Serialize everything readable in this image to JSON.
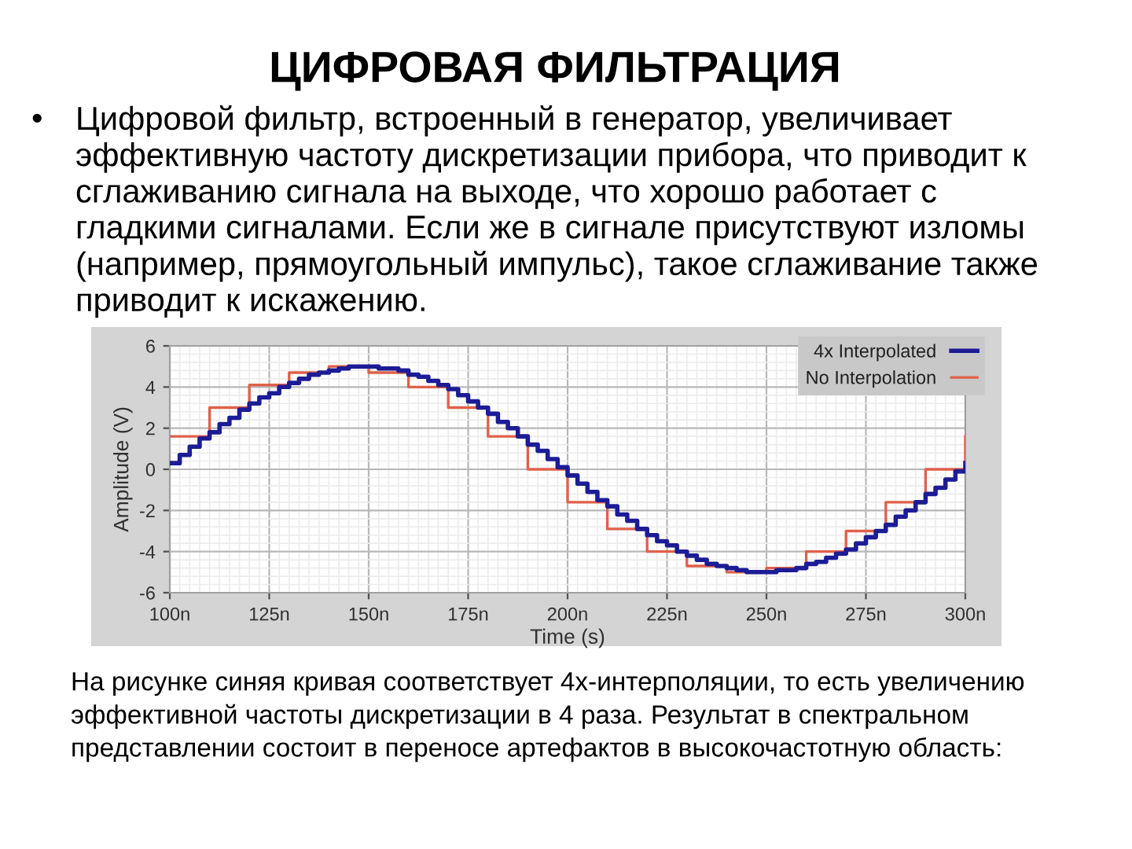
{
  "chart_data": {
    "type": "step",
    "title": "ЦИФРОВАЯ ФИЛЬТРАЦИЯ",
    "annotations": [
      "• Цифровой фильтр, встроенный в генератор, увеличивает\nэффективную частоту дискретизации прибора, что приводит к\nсглаживанию сигнала на выходе, что хорошо работает с\nгладкими сигналами. Если же в сигнале присутствуют изломы\n(например, прямоугольный импульс), такое сглаживание также\nприводит к искажению.",
      "На рисунке синяя кривая соответствует 4х-интерполяции, то есть увеличению\nэффективной частоты дискретизации в 4 раза. Результат в спектральном\nпредставлении состоит в переносе артефактов в высокочастотную область:"
    ],
    "xlabel": "Time (s)",
    "ylabel": "Amplitude (V)",
    "series": [
      {
        "name": "4x Interpolated",
        "color": "#1c1c96",
        "x": [
          100,
          102.5,
          105,
          107.5,
          110,
          112.5,
          115,
          117.5,
          120,
          122.5,
          125,
          127.5,
          130,
          132.5,
          135,
          137.5,
          140,
          142.5,
          145,
          147.5,
          150,
          152.5,
          155,
          157.5,
          160,
          162.5,
          165,
          167.5,
          170,
          172.5,
          175,
          177.5,
          180,
          182.5,
          185,
          187.5,
          190,
          192.5,
          195,
          197.5,
          200,
          202.5,
          205,
          207.5,
          210,
          212.5,
          215,
          217.5,
          220,
          222.5,
          225,
          227.5,
          230,
          232.5,
          235,
          237.5,
          240,
          242.5,
          245,
          247.5,
          250,
          252.5,
          255,
          257.5,
          260,
          262.5,
          265,
          267.5,
          270,
          272.5,
          275,
          277.5,
          280,
          282.5,
          285,
          287.5,
          290,
          292.5,
          295,
          297.5,
          300
        ],
        "values": [
          0.3,
          0.7,
          1.1,
          1.5,
          1.8,
          2.2,
          2.5,
          2.9,
          3.2,
          3.5,
          3.7,
          4.0,
          4.2,
          4.4,
          4.6,
          4.7,
          4.8,
          4.9,
          5.0,
          5.0,
          5.0,
          4.9,
          4.9,
          4.8,
          4.6,
          4.5,
          4.3,
          4.1,
          3.9,
          3.6,
          3.3,
          3.0,
          2.7,
          2.3,
          2.0,
          1.6,
          1.2,
          0.9,
          0.5,
          0.1,
          -0.3,
          -0.7,
          -1.1,
          -1.5,
          -1.8,
          -2.2,
          -2.5,
          -2.9,
          -3.2,
          -3.5,
          -3.7,
          -4.0,
          -4.2,
          -4.4,
          -4.6,
          -4.7,
          -4.8,
          -4.9,
          -5.0,
          -5.0,
          -5.0,
          -4.9,
          -4.9,
          -4.8,
          -4.6,
          -4.5,
          -4.3,
          -4.1,
          -3.9,
          -3.6,
          -3.3,
          -3.0,
          -2.7,
          -2.3,
          -2.0,
          -1.6,
          -1.2,
          -0.9,
          -0.5,
          -0.1,
          0.3
        ]
      },
      {
        "name": "No Interpolation",
        "color": "#e0604a",
        "x": [
          100,
          110,
          120,
          130,
          140,
          150,
          160,
          170,
          180,
          190,
          200,
          210,
          220,
          230,
          240,
          250,
          260,
          270,
          280,
          290,
          300
        ],
        "values": [
          1.6,
          3.0,
          4.1,
          4.7,
          5.0,
          4.7,
          4.0,
          3.0,
          1.6,
          0.0,
          -1.6,
          -2.9,
          -4.0,
          -4.7,
          -5.0,
          -4.8,
          -4.0,
          -3.0,
          -1.6,
          0.0,
          1.6
        ]
      }
    ],
    "xlim": [
      100,
      300
    ],
    "xticks": [
      {
        "value": 100,
        "label": "100n"
      },
      {
        "value": 125,
        "label": "125n"
      },
      {
        "value": 150,
        "label": "150n"
      },
      {
        "value": 175,
        "label": "175n"
      },
      {
        "value": 200,
        "label": "200n"
      },
      {
        "value": 225,
        "label": "225n"
      },
      {
        "value": 250,
        "label": "250n"
      },
      {
        "value": 275,
        "label": "275n"
      },
      {
        "value": 300,
        "label": "300n"
      }
    ],
    "ylim": [
      -6,
      6
    ],
    "yticks": [
      -6,
      -4,
      -2,
      0,
      2,
      4,
      6
    ],
    "grid": true,
    "legend": "top right"
  }
}
